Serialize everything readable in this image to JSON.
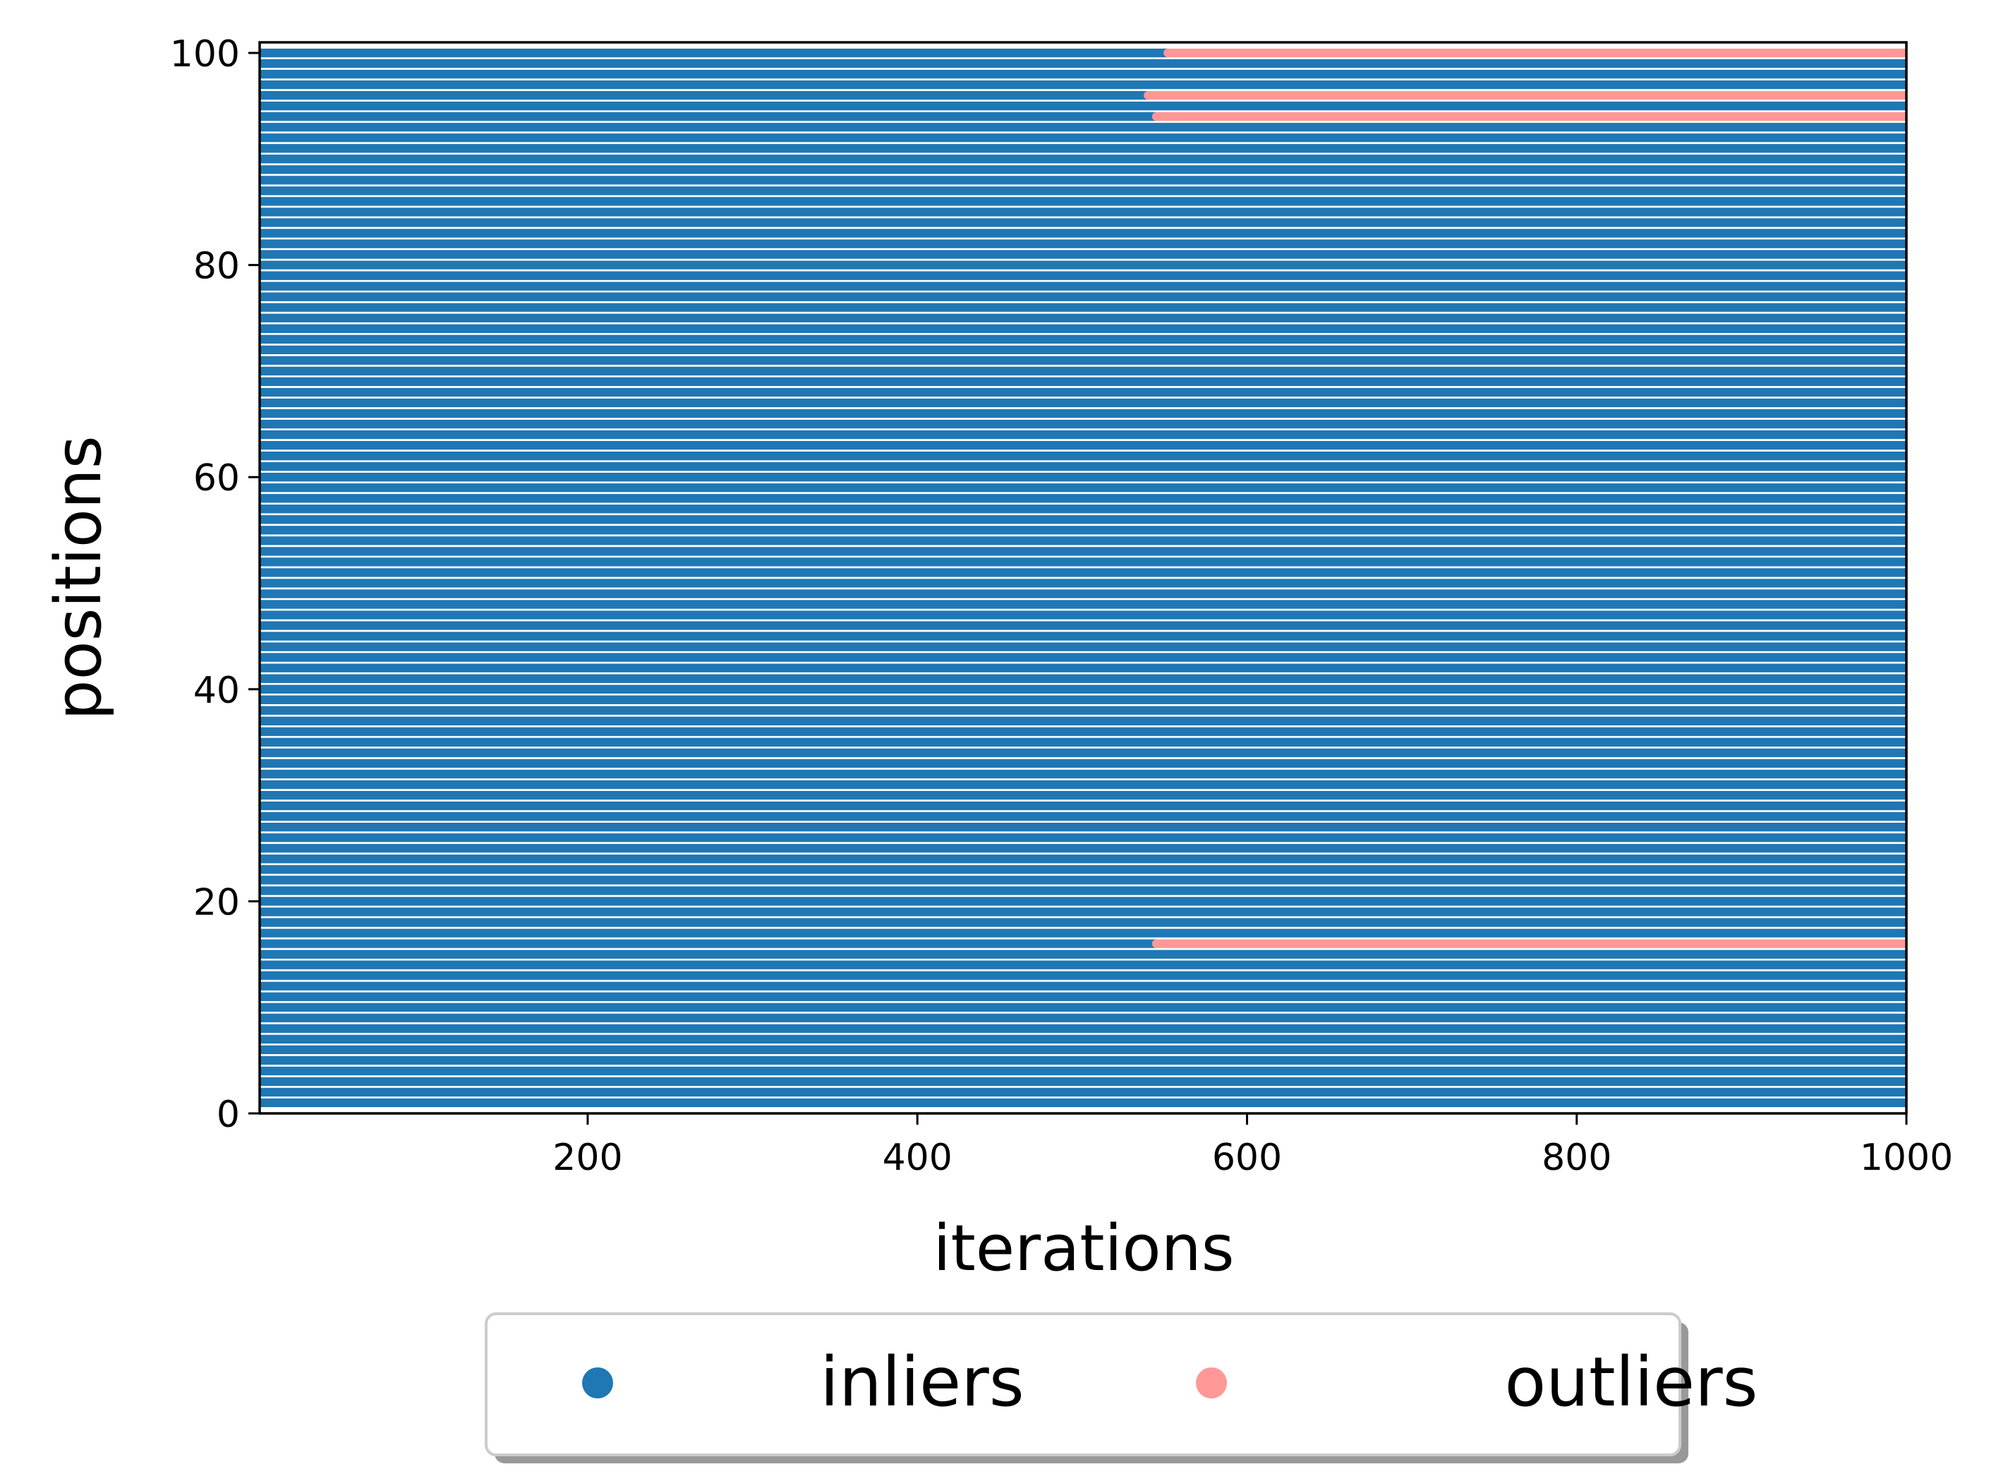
{
  "chart_data": {
    "type": "segments",
    "xlabel": "iterations",
    "ylabel": "positions",
    "xlim": [
      1,
      1000
    ],
    "ylim": [
      0,
      101
    ],
    "xticks": [
      200,
      400,
      600,
      800,
      1000
    ],
    "yticks": [
      0,
      20,
      40,
      60,
      80,
      100
    ],
    "legend": "below",
    "series": [
      {
        "name": "inliers",
        "color": "#1f77b4",
        "positions": [
          1,
          2,
          3,
          4,
          5,
          6,
          7,
          8,
          9,
          10,
          11,
          12,
          13,
          14,
          15,
          16,
          17,
          18,
          19,
          20,
          21,
          22,
          23,
          24,
          25,
          26,
          27,
          28,
          29,
          30,
          31,
          32,
          33,
          34,
          35,
          36,
          37,
          38,
          39,
          40,
          41,
          42,
          43,
          44,
          45,
          46,
          47,
          48,
          49,
          50,
          51,
          52,
          53,
          54,
          55,
          56,
          57,
          58,
          59,
          60,
          61,
          62,
          63,
          64,
          65,
          66,
          67,
          68,
          69,
          70,
          71,
          72,
          73,
          74,
          75,
          76,
          77,
          78,
          79,
          80,
          81,
          82,
          83,
          84,
          85,
          86,
          87,
          88,
          89,
          90,
          91,
          92,
          93,
          94,
          95,
          96,
          97,
          98,
          99,
          100
        ],
        "x_start": [
          1,
          1,
          1,
          1,
          1,
          1,
          1,
          1,
          1,
          1,
          1,
          1,
          1,
          1,
          1,
          1,
          1,
          1,
          1,
          1,
          1,
          1,
          1,
          1,
          1,
          1,
          1,
          1,
          1,
          1,
          1,
          1,
          1,
          1,
          1,
          1,
          1,
          1,
          1,
          1,
          1,
          1,
          1,
          1,
          1,
          1,
          1,
          1,
          1,
          1,
          1,
          1,
          1,
          1,
          1,
          1,
          1,
          1,
          1,
          1,
          1,
          1,
          1,
          1,
          1,
          1,
          1,
          1,
          1,
          1,
          1,
          1,
          1,
          1,
          1,
          1,
          1,
          1,
          1,
          1,
          1,
          1,
          1,
          1,
          1,
          1,
          1,
          1,
          1,
          1,
          1,
          1,
          1,
          1,
          1,
          1,
          1,
          1,
          1,
          1
        ],
        "x_end": [
          1000,
          1000,
          1000,
          1000,
          1000,
          1000,
          1000,
          1000,
          1000,
          1000,
          1000,
          1000,
          1000,
          1000,
          1000,
          545,
          1000,
          1000,
          1000,
          1000,
          1000,
          1000,
          1000,
          1000,
          1000,
          1000,
          1000,
          1000,
          1000,
          1000,
          1000,
          1000,
          1000,
          1000,
          1000,
          1000,
          1000,
          1000,
          1000,
          1000,
          1000,
          1000,
          1000,
          1000,
          1000,
          1000,
          1000,
          1000,
          1000,
          1000,
          1000,
          1000,
          1000,
          1000,
          1000,
          1000,
          1000,
          1000,
          1000,
          1000,
          1000,
          1000,
          1000,
          1000,
          1000,
          1000,
          1000,
          1000,
          1000,
          1000,
          1000,
          1000,
          1000,
          1000,
          1000,
          1000,
          1000,
          1000,
          1000,
          1000,
          1000,
          1000,
          1000,
          1000,
          1000,
          1000,
          1000,
          1000,
          1000,
          1000,
          1000,
          1000,
          1000,
          545,
          1000,
          540,
          1000,
          1000,
          1000,
          552
        ]
      },
      {
        "name": "outliers",
        "color": "#ff9896",
        "positions": [
          16,
          94,
          96,
          100
        ],
        "x_start": [
          545,
          545,
          540,
          552
        ],
        "x_end": [
          1000,
          1000,
          1000,
          1000
        ]
      }
    ]
  }
}
